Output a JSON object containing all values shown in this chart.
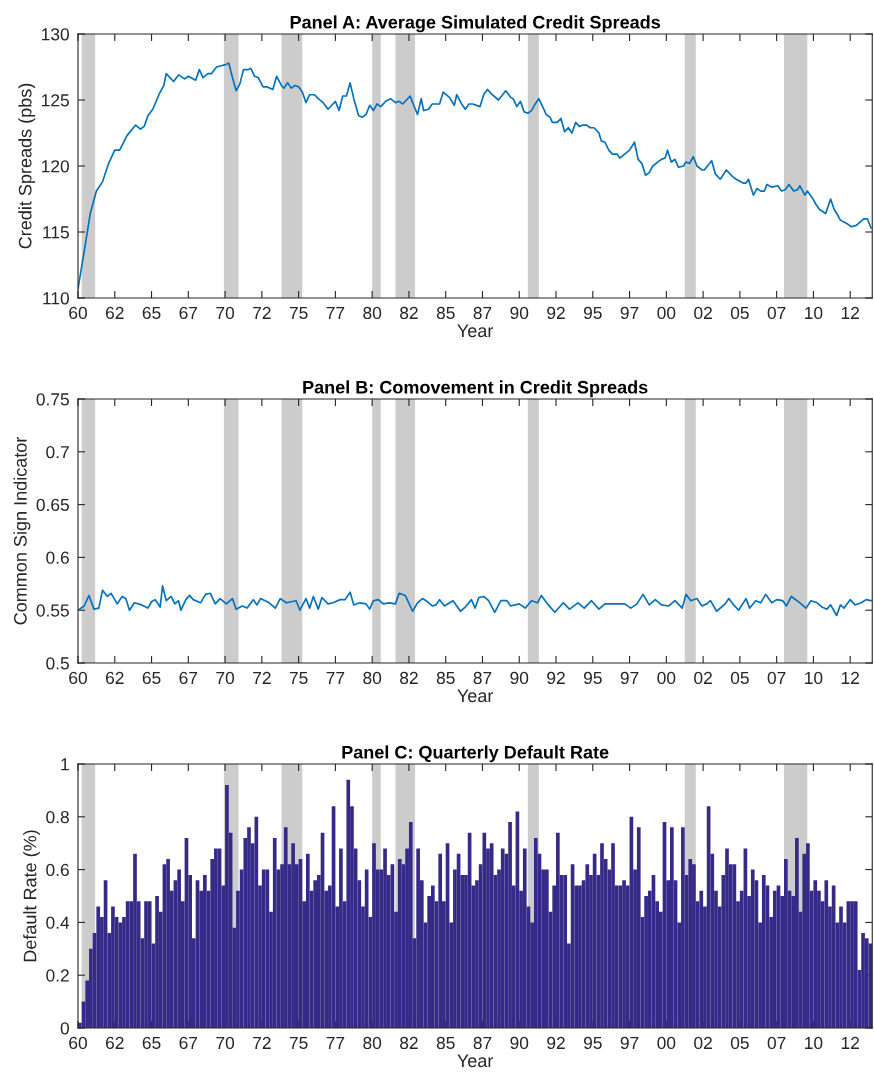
{
  "chart_data": [
    {
      "type": "line",
      "title": "Panel A: Average Simulated Credit Spreads",
      "xlabel": "Year",
      "ylabel": "Credit Spreads (pbs)",
      "color": "#0072bd",
      "x": [
        "1960-01",
        "1960-06",
        "1960-11",
        "1961-04",
        "1961-09",
        "1962-02",
        "1962-07",
        "1962-11",
        "1963-05",
        "1963-12",
        "1964-04",
        "1964-07",
        "1964-10",
        "1965-02",
        "1965-07",
        "1965-11",
        "1966-01",
        "1966-07",
        "1966-11",
        "1967-04",
        "1967-07",
        "1968-01",
        "1968-04",
        "1968-07",
        "1968-11",
        "1969-02",
        "1969-06",
        "1969-10",
        "1970-02",
        "1970-04",
        "1970-07",
        "1970-10",
        "1971-01",
        "1971-04",
        "1971-08",
        "1971-10",
        "1972-01",
        "1972-04",
        "1972-08",
        "1972-11",
        "1973-04",
        "1973-07",
        "1973-11",
        "1974-01",
        "1974-04",
        "1974-07",
        "1974-10",
        "1975-01",
        "1975-04",
        "1975-07",
        "1975-10",
        "1976-02",
        "1976-05",
        "1976-09",
        "1977-01",
        "1977-05",
        "1977-07",
        "1977-10",
        "1978-01",
        "1978-04",
        "1978-07",
        "1978-10",
        "1979-02",
        "1979-05",
        "1979-08",
        "1979-11",
        "1980-02",
        "1980-05",
        "1980-08",
        "1980-12",
        "1981-04",
        "1981-08",
        "1981-11",
        "1982-02",
        "1982-05",
        "1982-08",
        "1982-10",
        "1983-02",
        "1983-05",
        "1983-07",
        "1983-11",
        "1984-02",
        "1984-08",
        "1984-11",
        "1985-04",
        "1985-08",
        "1985-10",
        "1986-02",
        "1986-05",
        "1986-08",
        "1986-11",
        "1987-05",
        "1987-08",
        "1987-11",
        "1988-03",
        "1988-08",
        "1989-02",
        "1989-06",
        "1989-08",
        "1989-11",
        "1990-02",
        "1990-05",
        "1990-08",
        "1990-11",
        "1991-02",
        "1991-05",
        "1991-07",
        "1991-11",
        "1992-02",
        "1992-04",
        "1992-08",
        "1992-11",
        "1993-02",
        "1993-05",
        "1993-08",
        "1993-11",
        "1994-02",
        "1994-05",
        "1994-08",
        "1994-11",
        "1995-02",
        "1995-06",
        "1995-08",
        "1995-11",
        "1996-02",
        "1996-05",
        "1996-09",
        "1996-11",
        "1997-03",
        "1997-07",
        "1997-11",
        "1998-02",
        "1998-05",
        "1998-08",
        "1998-11",
        "1999-02",
        "1999-06",
        "1999-09",
        "1999-12",
        "2000-02",
        "2000-05",
        "2000-08",
        "2000-11",
        "2001-03",
        "2001-05",
        "2001-08",
        "2001-11",
        "2002-02",
        "2002-06",
        "2002-08",
        "2003-02",
        "2003-05",
        "2003-09",
        "2004-02",
        "2004-07",
        "2004-10",
        "2005-04",
        "2005-06",
        "2005-08",
        "2005-12",
        "2006-03",
        "2006-06",
        "2006-09",
        "2006-11",
        "2007-03",
        "2007-08",
        "2007-11",
        "2008-02",
        "2008-05",
        "2008-09",
        "2008-12",
        "2009-02",
        "2009-06",
        "2009-08",
        "2009-12",
        "2010-03",
        "2010-06",
        "2010-11",
        "2011-03",
        "2011-06",
        "2011-08",
        "2011-11",
        "2012-05",
        "2012-08",
        "2012-12",
        "2013-06",
        "2013-09",
        "2013-12"
      ],
      "values": [
        110.7,
        113.5,
        116.4,
        118.1,
        118.8,
        120.2,
        121.2,
        121.2,
        122.3,
        123.1,
        122.8,
        123.0,
        123.8,
        124.3,
        125.4,
        126.1,
        127.0,
        126.4,
        126.9,
        126.6,
        126.8,
        126.5,
        127.3,
        126.7,
        127.0,
        127.0,
        127.5,
        127.6,
        127.7,
        127.8,
        126.7,
        125.7,
        126.2,
        127.3,
        127.3,
        127.4,
        126.8,
        126.7,
        126.0,
        126.0,
        125.8,
        126.8,
        126.1,
        125.9,
        126.3,
        125.9,
        126.1,
        126.0,
        125.6,
        124.8,
        125.4,
        125.4,
        125.1,
        124.8,
        124.3,
        124.7,
        124.9,
        124.2,
        125.3,
        125.3,
        126.3,
        125.1,
        123.8,
        123.7,
        123.9,
        124.6,
        124.2,
        124.7,
        124.5,
        124.9,
        125.1,
        124.8,
        124.9,
        124.7,
        125.0,
        125.3,
        124.8,
        123.9,
        125.1,
        124.2,
        124.3,
        124.7,
        124.7,
        125.6,
        125.2,
        124.6,
        125.4,
        124.7,
        124.3,
        124.7,
        124.7,
        124.5,
        125.4,
        125.8,
        125.4,
        125.0,
        125.7,
        125.2,
        125.1,
        124.5,
        124.9,
        124.1,
        124.0,
        124.2,
        124.7,
        125.1,
        124.7,
        123.9,
        123.7,
        123.3,
        123.3,
        123.6,
        122.6,
        122.9,
        122.5,
        123.3,
        123.0,
        123.1,
        123.1,
        122.9,
        122.9,
        122.5,
        121.9,
        121.8,
        121.2,
        120.9,
        120.9,
        120.6,
        120.9,
        121.2,
        121.8,
        120.5,
        120.2,
        119.3,
        119.5,
        120.0,
        120.3,
        120.5,
        120.6,
        121.2,
        120.3,
        120.5,
        119.9,
        120.0,
        120.3,
        120.2,
        120.7,
        120.0,
        119.7,
        119.7,
        120.4,
        119.4,
        119.0,
        119.7,
        119.2,
        119.0,
        118.7,
        118.7,
        119.0,
        117.8,
        118.3,
        118.1,
        118.1,
        118.6,
        118.4,
        118.5,
        118.1,
        118.2,
        118.6,
        118.1,
        118.2,
        118.5,
        117.8,
        118.1,
        117.6,
        117.1,
        116.7,
        116.4,
        117.5,
        116.7,
        116.4,
        115.9,
        115.6,
        115.4,
        115.5,
        116.0,
        116.0,
        115.3
      ],
      "xlim": [
        "1960-01",
        "2014-01"
      ],
      "ylim": [
        110,
        130
      ],
      "yticks": [
        110,
        115,
        120,
        125,
        130
      ],
      "xticks": [
        {
          "value": "1960-01",
          "label": "60"
        },
        {
          "value": "1962-07",
          "label": "62"
        },
        {
          "value": "1965-01",
          "label": "65"
        },
        {
          "value": "1967-07",
          "label": "67"
        },
        {
          "value": "1970-01",
          "label": "70"
        },
        {
          "value": "1972-07",
          "label": "72"
        },
        {
          "value": "1975-01",
          "label": "75"
        },
        {
          "value": "1977-07",
          "label": "77"
        },
        {
          "value": "1980-01",
          "label": "80"
        },
        {
          "value": "1982-07",
          "label": "82"
        },
        {
          "value": "1985-01",
          "label": "85"
        },
        {
          "value": "1987-07",
          "label": "87"
        },
        {
          "value": "1990-01",
          "label": "90"
        },
        {
          "value": "1992-07",
          "label": "92"
        },
        {
          "value": "1995-01",
          "label": "95"
        },
        {
          "value": "1997-07",
          "label": "97"
        },
        {
          "value": "2000-01",
          "label": "00"
        },
        {
          "value": "2002-07",
          "label": "02"
        },
        {
          "value": "2005-01",
          "label": "05"
        },
        {
          "value": "2007-07",
          "label": "07"
        },
        {
          "value": "2010-01",
          "label": "10"
        },
        {
          "value": "2012-07",
          "label": "12"
        }
      ],
      "bands": [
        {
          "axis": "x",
          "from": "1960-04",
          "to": "1961-03",
          "color": "#cccccc"
        },
        {
          "axis": "x",
          "from": "1969-12",
          "to": "1970-12",
          "color": "#cccccc"
        },
        {
          "axis": "x",
          "from": "1973-11",
          "to": "1975-04",
          "color": "#cccccc"
        },
        {
          "axis": "x",
          "from": "1980-01",
          "to": "1980-08",
          "color": "#cccccc"
        },
        {
          "axis": "x",
          "from": "1981-08",
          "to": "1982-12",
          "color": "#cccccc"
        },
        {
          "axis": "x",
          "from": "1990-08",
          "to": "1991-05",
          "color": "#cccccc"
        },
        {
          "axis": "x",
          "from": "2001-04",
          "to": "2002-01",
          "color": "#cccccc"
        },
        {
          "axis": "x",
          "from": "2008-01",
          "to": "2009-08",
          "color": "#cccccc"
        }
      ]
    },
    {
      "type": "line",
      "title": "Panel B: Comovement in Credit Spreads",
      "xlabel": "Year",
      "ylabel": "Common Sign Indicator",
      "color": "#0072bd",
      "x": [
        "1960-01",
        "1960-06",
        "1960-10",
        "1961-02",
        "1961-06",
        "1961-09",
        "1962-01",
        "1962-04",
        "1962-09",
        "1963-01",
        "1963-04",
        "1963-07",
        "1963-11",
        "1964-05",
        "1964-10",
        "1965-01",
        "1965-04",
        "1965-08",
        "1965-10",
        "1966-01",
        "1966-05",
        "1966-08",
        "1966-11",
        "1967-01",
        "1967-05",
        "1967-08",
        "1967-11",
        "1968-05",
        "1968-09",
        "1969-01",
        "1969-05",
        "1969-09",
        "1970-02",
        "1970-07",
        "1970-10",
        "1971-03",
        "1971-07",
        "1971-12",
        "1972-03",
        "1972-06",
        "1973-01",
        "1973-06",
        "1973-10",
        "1974-03",
        "1974-07",
        "1974-11",
        "1975-02",
        "1975-07",
        "1975-10",
        "1976-01",
        "1976-05",
        "1976-08",
        "1977-01",
        "1977-05",
        "1977-11",
        "1978-03",
        "1978-07",
        "1978-10",
        "1979-03",
        "1979-08",
        "1979-11",
        "1980-02",
        "1980-06",
        "1980-10",
        "1981-03",
        "1981-08",
        "1981-11",
        "1982-04",
        "1982-10",
        "1983-02",
        "1983-06",
        "1983-09",
        "1984-02",
        "1984-05",
        "1984-08",
        "1984-12",
        "1985-07",
        "1986-01",
        "1986-05",
        "1986-10",
        "1987-01",
        "1987-04",
        "1987-08",
        "1987-12",
        "1988-05",
        "1988-10",
        "1989-03",
        "1989-06",
        "1990-01",
        "1990-06",
        "1990-11",
        "1991-04",
        "1991-07",
        "1991-12",
        "1992-06",
        "1993-01",
        "1993-06",
        "1994-01",
        "1994-06",
        "1994-12",
        "1995-06",
        "1995-11",
        "1996-08",
        "1997-03",
        "1997-08",
        "1998-01",
        "1998-06",
        "1998-11",
        "1999-04",
        "1999-09",
        "2000-03",
        "2000-08",
        "2001-02",
        "2001-05",
        "2001-09",
        "2002-02",
        "2002-06",
        "2002-10",
        "2003-01",
        "2003-06",
        "2004-01",
        "2004-04",
        "2004-08",
        "2004-12",
        "2005-06",
        "2005-09",
        "2006-02",
        "2006-06",
        "2006-10",
        "2007-03",
        "2007-07",
        "2007-12",
        "2008-03",
        "2008-07",
        "2009-02",
        "2009-07",
        "2009-11",
        "2010-04",
        "2010-08",
        "2010-12",
        "2011-03",
        "2011-08",
        "2011-11",
        "2012-02",
        "2012-07",
        "2012-11",
        "2013-04",
        "2013-08",
        "2013-12"
      ],
      "values": [
        0.55,
        0.554,
        0.564,
        0.551,
        0.552,
        0.569,
        0.563,
        0.566,
        0.556,
        0.563,
        0.561,
        0.55,
        0.557,
        0.555,
        0.552,
        0.558,
        0.56,
        0.553,
        0.573,
        0.559,
        0.563,
        0.556,
        0.559,
        0.55,
        0.56,
        0.564,
        0.56,
        0.557,
        0.565,
        0.566,
        0.556,
        0.561,
        0.556,
        0.561,
        0.551,
        0.554,
        0.552,
        0.56,
        0.555,
        0.561,
        0.557,
        0.552,
        0.561,
        0.557,
        0.558,
        0.559,
        0.55,
        0.561,
        0.552,
        0.563,
        0.551,
        0.562,
        0.556,
        0.557,
        0.56,
        0.56,
        0.567,
        0.555,
        0.557,
        0.556,
        0.551,
        0.559,
        0.56,
        0.556,
        0.557,
        0.556,
        0.566,
        0.564,
        0.549,
        0.557,
        0.561,
        0.559,
        0.554,
        0.555,
        0.56,
        0.554,
        0.559,
        0.549,
        0.553,
        0.56,
        0.552,
        0.562,
        0.563,
        0.559,
        0.548,
        0.559,
        0.559,
        0.554,
        0.556,
        0.552,
        0.559,
        0.557,
        0.564,
        0.556,
        0.548,
        0.557,
        0.551,
        0.557,
        0.552,
        0.559,
        0.551,
        0.556,
        0.556,
        0.556,
        0.552,
        0.556,
        0.565,
        0.555,
        0.56,
        0.555,
        0.554,
        0.559,
        0.552,
        0.565,
        0.559,
        0.561,
        0.554,
        0.556,
        0.559,
        0.549,
        0.556,
        0.561,
        0.555,
        0.55,
        0.561,
        0.552,
        0.559,
        0.557,
        0.565,
        0.557,
        0.56,
        0.559,
        0.554,
        0.563,
        0.557,
        0.552,
        0.559,
        0.557,
        0.553,
        0.551,
        0.555,
        0.545,
        0.555,
        0.552,
        0.56,
        0.555,
        0.557,
        0.56,
        0.559
      ],
      "xlim": [
        "1960-01",
        "2014-01"
      ],
      "ylim": [
        0.5,
        0.75
      ],
      "yticks": [
        0.5,
        0.55,
        0.6,
        0.65,
        0.7,
        0.75
      ],
      "xticks": [
        {
          "value": "1960-01",
          "label": "60"
        },
        {
          "value": "1962-07",
          "label": "62"
        },
        {
          "value": "1965-01",
          "label": "65"
        },
        {
          "value": "1967-07",
          "label": "67"
        },
        {
          "value": "1970-01",
          "label": "70"
        },
        {
          "value": "1972-07",
          "label": "72"
        },
        {
          "value": "1975-01",
          "label": "75"
        },
        {
          "value": "1977-07",
          "label": "77"
        },
        {
          "value": "1980-01",
          "label": "80"
        },
        {
          "value": "1982-07",
          "label": "82"
        },
        {
          "value": "1985-01",
          "label": "85"
        },
        {
          "value": "1987-07",
          "label": "87"
        },
        {
          "value": "1990-01",
          "label": "90"
        },
        {
          "value": "1992-07",
          "label": "92"
        },
        {
          "value": "1995-01",
          "label": "95"
        },
        {
          "value": "1997-07",
          "label": "97"
        },
        {
          "value": "2000-01",
          "label": "00"
        },
        {
          "value": "2002-07",
          "label": "02"
        },
        {
          "value": "2005-01",
          "label": "05"
        },
        {
          "value": "2007-07",
          "label": "07"
        },
        {
          "value": "2010-01",
          "label": "10"
        },
        {
          "value": "2012-07",
          "label": "12"
        }
      ],
      "bands": [
        {
          "axis": "x",
          "from": "1960-04",
          "to": "1961-03",
          "color": "#cccccc"
        },
        {
          "axis": "x",
          "from": "1969-12",
          "to": "1970-12",
          "color": "#cccccc"
        },
        {
          "axis": "x",
          "from": "1973-11",
          "to": "1975-04",
          "color": "#cccccc"
        },
        {
          "axis": "x",
          "from": "1980-01",
          "to": "1980-08",
          "color": "#cccccc"
        },
        {
          "axis": "x",
          "from": "1981-08",
          "to": "1982-12",
          "color": "#cccccc"
        },
        {
          "axis": "x",
          "from": "1990-08",
          "to": "1991-05",
          "color": "#cccccc"
        },
        {
          "axis": "x",
          "from": "2001-04",
          "to": "2002-01",
          "color": "#cccccc"
        },
        {
          "axis": "x",
          "from": "2008-01",
          "to": "2009-08",
          "color": "#cccccc"
        }
      ]
    },
    {
      "type": "bar",
      "title": "Panel C: Quarterly Default Rate",
      "xlabel": "Year",
      "ylabel": "Default Rate (%)",
      "color": "#352a87",
      "x": [
        "1960-01",
        "1960-04",
        "1960-07",
        "1960-10",
        "1961-01",
        "1961-04",
        "1961-07",
        "1961-10",
        "1962-01",
        "1962-04",
        "1962-07",
        "1962-10",
        "1963-01",
        "1963-04",
        "1963-07",
        "1963-10",
        "1964-01",
        "1964-04",
        "1964-07",
        "1964-10",
        "1965-01",
        "1965-04",
        "1965-07",
        "1965-10",
        "1966-01",
        "1966-04",
        "1966-07",
        "1966-10",
        "1967-01",
        "1967-04",
        "1967-07",
        "1967-10",
        "1968-01",
        "1968-04",
        "1968-07",
        "1968-10",
        "1969-01",
        "1969-04",
        "1969-07",
        "1969-10",
        "1970-01",
        "1970-04",
        "1970-07",
        "1970-10",
        "1971-01",
        "1971-04",
        "1971-07",
        "1971-10",
        "1972-01",
        "1972-04",
        "1972-07",
        "1972-10",
        "1973-01",
        "1973-04",
        "1973-07",
        "1973-10",
        "1974-01",
        "1974-04",
        "1974-07",
        "1974-10",
        "1975-01",
        "1975-04",
        "1975-07",
        "1975-10",
        "1976-01",
        "1976-04",
        "1976-07",
        "1976-10",
        "1977-01",
        "1977-04",
        "1977-07",
        "1977-10",
        "1978-01",
        "1978-04",
        "1978-07",
        "1978-10",
        "1979-01",
        "1979-04",
        "1979-07",
        "1979-10",
        "1980-01",
        "1980-04",
        "1980-07",
        "1980-10",
        "1981-01",
        "1981-04",
        "1981-07",
        "1981-10",
        "1982-01",
        "1982-04",
        "1982-07",
        "1982-10",
        "1983-01",
        "1983-04",
        "1983-07",
        "1983-10",
        "1984-01",
        "1984-04",
        "1984-07",
        "1984-10",
        "1985-01",
        "1985-04",
        "1985-07",
        "1985-10",
        "1986-01",
        "1986-04",
        "1986-07",
        "1986-10",
        "1987-01",
        "1987-04",
        "1987-07",
        "1987-10",
        "1988-01",
        "1988-04",
        "1988-07",
        "1988-10",
        "1989-01",
        "1989-04",
        "1989-07",
        "1989-10",
        "1990-01",
        "1990-04",
        "1990-07",
        "1990-10",
        "1991-01",
        "1991-04",
        "1991-07",
        "1991-10",
        "1992-01",
        "1992-04",
        "1992-07",
        "1992-10",
        "1993-01",
        "1993-04",
        "1993-07",
        "1993-10",
        "1994-01",
        "1994-04",
        "1994-07",
        "1994-10",
        "1995-01",
        "1995-04",
        "1995-07",
        "1995-10",
        "1996-01",
        "1996-04",
        "1996-07",
        "1996-10",
        "1997-01",
        "1997-04",
        "1997-07",
        "1997-10",
        "1998-01",
        "1998-04",
        "1998-07",
        "1998-10",
        "1999-01",
        "1999-04",
        "1999-07",
        "1999-10",
        "2000-01",
        "2000-04",
        "2000-07",
        "2000-10",
        "2001-01",
        "2001-04",
        "2001-07",
        "2001-10",
        "2002-01",
        "2002-04",
        "2002-07",
        "2002-10",
        "2003-01",
        "2003-04",
        "2003-07",
        "2003-10",
        "2004-01",
        "2004-04",
        "2004-07",
        "2004-10",
        "2005-01",
        "2005-04",
        "2005-07",
        "2005-10",
        "2006-01",
        "2006-04",
        "2006-07",
        "2006-10",
        "2007-01",
        "2007-04",
        "2007-07",
        "2007-10",
        "2008-01",
        "2008-04",
        "2008-07",
        "2008-10",
        "2009-01",
        "2009-04",
        "2009-07",
        "2009-10",
        "2010-01",
        "2010-04",
        "2010-07",
        "2010-10",
        "2011-01",
        "2011-04",
        "2011-07",
        "2011-10",
        "2012-01",
        "2012-04",
        "2012-07",
        "2012-10",
        "2013-01",
        "2013-04",
        "2013-07",
        "2013-10"
      ],
      "values": [
        0.02,
        0.1,
        0.18,
        0.3,
        0.36,
        0.46,
        0.42,
        0.56,
        0.36,
        0.46,
        0.42,
        0.4,
        0.42,
        0.48,
        0.48,
        0.66,
        0.48,
        0.34,
        0.48,
        0.48,
        0.32,
        0.5,
        0.44,
        0.62,
        0.64,
        0.52,
        0.56,
        0.6,
        0.48,
        0.72,
        0.58,
        0.34,
        0.56,
        0.52,
        0.58,
        0.52,
        0.64,
        0.68,
        0.68,
        0.54,
        0.92,
        0.74,
        0.38,
        0.52,
        0.6,
        0.72,
        0.76,
        0.7,
        0.8,
        0.54,
        0.6,
        0.6,
        0.44,
        0.72,
        0.6,
        0.62,
        0.76,
        0.62,
        0.7,
        0.62,
        0.64,
        0.48,
        0.66,
        0.52,
        0.56,
        0.58,
        0.74,
        0.52,
        0.54,
        0.84,
        0.46,
        0.68,
        0.48,
        0.94,
        0.84,
        0.68,
        0.56,
        0.46,
        0.6,
        0.42,
        0.7,
        0.6,
        0.6,
        0.68,
        0.58,
        0.62,
        0.44,
        0.64,
        0.62,
        0.68,
        0.78,
        0.34,
        0.68,
        0.56,
        0.4,
        0.5,
        0.54,
        0.48,
        0.66,
        0.48,
        0.7,
        0.4,
        0.6,
        0.66,
        0.58,
        0.58,
        0.74,
        0.54,
        0.56,
        0.62,
        0.74,
        0.68,
        0.7,
        0.58,
        0.6,
        0.68,
        0.66,
        0.78,
        0.54,
        0.82,
        0.52,
        0.68,
        0.46,
        0.4,
        0.72,
        0.66,
        0.6,
        0.6,
        0.44,
        0.54,
        0.74,
        0.58,
        0.58,
        0.32,
        0.62,
        0.54,
        0.54,
        0.56,
        0.62,
        0.58,
        0.66,
        0.58,
        0.7,
        0.64,
        0.6,
        0.7,
        0.54,
        0.54,
        0.56,
        0.54,
        0.8,
        0.6,
        0.76,
        0.42,
        0.5,
        0.52,
        0.58,
        0.48,
        0.44,
        0.78,
        0.56,
        0.76,
        0.56,
        0.4,
        0.76,
        0.58,
        0.64,
        0.62,
        0.48,
        0.52,
        0.46,
        0.84,
        0.66,
        0.52,
        0.46,
        0.58,
        0.68,
        0.62,
        0.62,
        0.48,
        0.52,
        0.68,
        0.5,
        0.6,
        0.56,
        0.4,
        0.58,
        0.54,
        0.42,
        0.52,
        0.54,
        0.5,
        0.64,
        0.52,
        0.5,
        0.72,
        0.44,
        0.66,
        0.7,
        0.52,
        0.56,
        0.52,
        0.48,
        0.56,
        0.46,
        0.54,
        0.4,
        0.46,
        0.4,
        0.48,
        0.48,
        0.48,
        0.22,
        0.36,
        0.34,
        0.32
      ],
      "xlim": [
        "1960-01",
        "2014-01"
      ],
      "ylim": [
        0,
        1
      ],
      "yticks": [
        0,
        0.2,
        0.4,
        0.6,
        0.8,
        1
      ],
      "xticks": [
        {
          "value": "1960-01",
          "label": "60"
        },
        {
          "value": "1962-07",
          "label": "62"
        },
        {
          "value": "1965-01",
          "label": "65"
        },
        {
          "value": "1967-07",
          "label": "67"
        },
        {
          "value": "1970-01",
          "label": "70"
        },
        {
          "value": "1972-07",
          "label": "72"
        },
        {
          "value": "1975-01",
          "label": "75"
        },
        {
          "value": "1977-07",
          "label": "77"
        },
        {
          "value": "1980-01",
          "label": "80"
        },
        {
          "value": "1982-07",
          "label": "82"
        },
        {
          "value": "1985-01",
          "label": "85"
        },
        {
          "value": "1987-07",
          "label": "87"
        },
        {
          "value": "1990-01",
          "label": "90"
        },
        {
          "value": "1992-07",
          "label": "92"
        },
        {
          "value": "1995-01",
          "label": "95"
        },
        {
          "value": "1997-07",
          "label": "97"
        },
        {
          "value": "2000-01",
          "label": "00"
        },
        {
          "value": "2002-07",
          "label": "02"
        },
        {
          "value": "2005-01",
          "label": "05"
        },
        {
          "value": "2007-07",
          "label": "07"
        },
        {
          "value": "2010-01",
          "label": "10"
        },
        {
          "value": "2012-07",
          "label": "12"
        }
      ],
      "bands": [
        {
          "axis": "x",
          "from": "1960-04",
          "to": "1961-03",
          "color": "#cccccc"
        },
        {
          "axis": "x",
          "from": "1969-12",
          "to": "1970-12",
          "color": "#cccccc"
        },
        {
          "axis": "x",
          "from": "1973-11",
          "to": "1975-04",
          "color": "#cccccc"
        },
        {
          "axis": "x",
          "from": "1980-01",
          "to": "1980-08",
          "color": "#cccccc"
        },
        {
          "axis": "x",
          "from": "1981-08",
          "to": "1982-12",
          "color": "#cccccc"
        },
        {
          "axis": "x",
          "from": "1990-08",
          "to": "1991-05",
          "color": "#cccccc"
        },
        {
          "axis": "x",
          "from": "2001-04",
          "to": "2002-01",
          "color": "#cccccc"
        },
        {
          "axis": "x",
          "from": "2008-01",
          "to": "2009-08",
          "color": "#cccccc"
        }
      ]
    }
  ]
}
